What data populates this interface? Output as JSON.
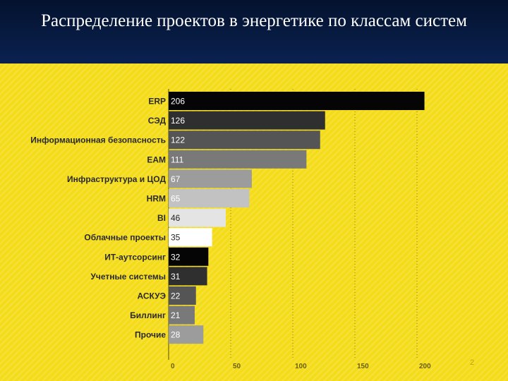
{
  "slide": {
    "title": "Распределение проектов в энергетике по классам систем",
    "number": "2"
  },
  "chart_data": {
    "type": "bar",
    "orientation": "horizontal",
    "title": "",
    "xlabel": "",
    "ylabel": "",
    "categories": [
      "ERP",
      "СЭД",
      "Информационная безопасность",
      "EAM",
      "Инфраструктура и ЦОД",
      "HRM",
      "BI",
      "Облачные проекты",
      "ИТ-аутсорсинг",
      "Учетные системы",
      "АСКУЭ",
      "Биллинг",
      "Прочие"
    ],
    "values": [
      206,
      126,
      122,
      111,
      67,
      65,
      46,
      35,
      32,
      31,
      22,
      21,
      28
    ],
    "bar_colors": [
      "#050505",
      "#2f2f2f",
      "#555555",
      "#797979",
      "#9c9c9c",
      "#c2c2c2",
      "#e4e4e4",
      "#ffffff",
      "#050505",
      "#2f2f2f",
      "#555555",
      "#797979",
      "#9c9c9c"
    ],
    "label_colors": [
      "#ffffff",
      "#ffffff",
      "#ffffff",
      "#ffffff",
      "#ffffff",
      "#ffffff",
      "#222222",
      "#222222",
      "#ffffff",
      "#ffffff",
      "#ffffff",
      "#ffffff",
      "#ffffff"
    ],
    "xticks": [
      0,
      50,
      100,
      150,
      200
    ],
    "xlim": [
      0,
      210
    ],
    "grid": "vertical-dotted",
    "legend": "none"
  }
}
